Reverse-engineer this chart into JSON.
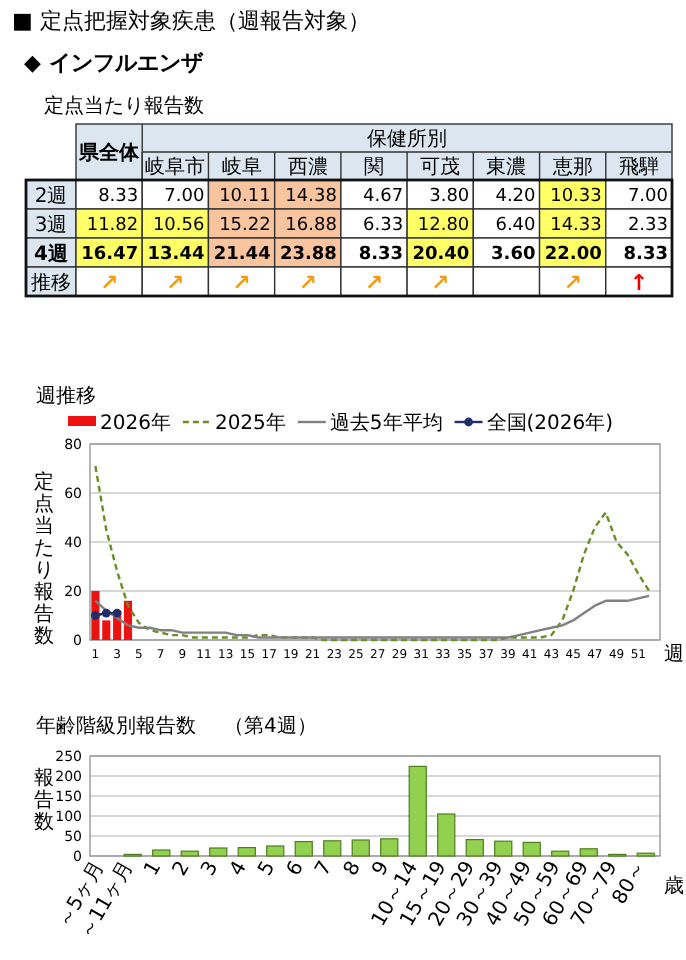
{
  "chart_data": [
    {
      "type": "other",
      "title": "■ 定点把握対象疾患（週報告対象）",
      "subtitle": "◆ インフルエンザ"
    },
    {
      "type": "heatmap",
      "title": "定点当たり報告数",
      "annotations": [
        "保健所別"
      ],
      "categories": [
        "県全体",
        "岐阜市",
        "岐阜",
        "西濃",
        "関",
        "可茂",
        "東濃",
        "恵那",
        "飛騨"
      ],
      "y_categories": [
        "2週",
        "3週",
        "4週",
        "推移"
      ],
      "cells": [
        [
          8.33,
          7.0,
          10.11,
          14.38,
          4.67,
          3.8,
          4.2,
          10.33,
          7.0
        ],
        [
          11.82,
          10.56,
          15.22,
          16.88,
          6.33,
          12.8,
          6.4,
          14.33,
          2.33
        ],
        [
          16.47,
          13.44,
          21.44,
          23.88,
          8.33,
          20.4,
          3.6,
          22.0,
          8.33
        ],
        [
          null,
          null,
          null,
          null,
          null,
          null,
          null,
          null,
          null
        ]
      ],
      "cell_labels": [
        [
          "8.33",
          "7.00",
          "10.11",
          "14.38",
          "4.67",
          "3.80",
          "4.20",
          "10.33",
          "7.00"
        ],
        [
          "11.82",
          "10.56",
          "15.22",
          "16.88",
          "6.33",
          "12.80",
          "6.40",
          "14.33",
          "2.33"
        ],
        [
          "16.47",
          "13.44",
          "21.44",
          "23.88",
          "8.33",
          "20.40",
          "3.60",
          "22.00",
          "8.33"
        ],
        [
          "↗",
          "↗",
          "↗",
          "↗",
          "↗",
          "↗",
          null,
          "↗",
          "↑"
        ]
      ],
      "colors": [
        [
          "#ffffff",
          "#ffffff",
          "#f9c49e",
          "#f9c49e",
          "#ffffff",
          "#ffffff",
          "#ffffff",
          "#ffff66",
          "#ffffff"
        ],
        [
          "#ffff66",
          "#ffff66",
          "#f9c49e",
          "#f9c49e",
          "#ffffff",
          "#ffff66",
          "#ffffff",
          "#ffff66",
          "#ffffff"
        ],
        [
          "#ffff66",
          "#ffff66",
          "#f9c49e",
          "#f9c49e",
          "#ffffff",
          "#ffff66",
          "#ffffff",
          "#ffff66",
          "#ffffff"
        ],
        [
          "#f39c12",
          "#f39c12",
          "#f39c12",
          "#f39c12",
          "#f39c12",
          "#f39c12",
          "#f39c12",
          "#f39c12",
          "#ee0000"
        ]
      ]
    },
    {
      "type": "line",
      "title": "週推移",
      "ylabel": "定点当たり報告数",
      "xlabel": "週",
      "xlim": [
        0.5,
        53
      ],
      "xticks": [
        1,
        3,
        5,
        7,
        9,
        11,
        13,
        15,
        17,
        19,
        21,
        23,
        25,
        27,
        29,
        31,
        33,
        35,
        37,
        39,
        41,
        43,
        45,
        47,
        49,
        51
      ],
      "ylim": [
        0,
        80
      ],
      "yticks": [
        0,
        20,
        40,
        60,
        80
      ],
      "grid": "y",
      "legend": "top",
      "series": [
        {
          "name": "2026年",
          "type": "bar",
          "color": "#ee1111",
          "x": [
            1,
            2,
            3,
            4
          ],
          "values": [
            20,
            8,
            12,
            16
          ]
        },
        {
          "name": "2025年",
          "type": "line",
          "line_style": "dashed",
          "color": "#6b8e23",
          "x": [
            1,
            2,
            3,
            4,
            5,
            6,
            7,
            8,
            9,
            10,
            11,
            12,
            13,
            14,
            15,
            16,
            17,
            18,
            19,
            20,
            21,
            22,
            23,
            24,
            25,
            26,
            27,
            28,
            29,
            30,
            31,
            32,
            33,
            34,
            35,
            36,
            37,
            38,
            39,
            40,
            41,
            42,
            43,
            44,
            45,
            46,
            47,
            48,
            49,
            50,
            51,
            52
          ],
          "values": [
            71,
            45,
            28,
            14,
            7,
            4,
            3,
            2,
            2,
            1,
            1,
            1,
            1,
            1,
            1,
            2,
            2,
            1,
            1,
            1,
            1,
            0,
            0,
            0,
            0,
            0,
            0,
            0,
            0,
            0,
            0,
            0,
            0,
            0,
            0,
            0,
            0,
            0,
            1,
            1,
            1,
            1,
            2,
            8,
            20,
            35,
            46,
            52,
            40,
            35,
            27,
            20
          ]
        },
        {
          "name": "過去5年平均",
          "type": "line",
          "color": "#808080",
          "x": [
            1,
            2,
            3,
            4,
            5,
            6,
            7,
            8,
            9,
            10,
            11,
            12,
            13,
            14,
            15,
            16,
            17,
            18,
            19,
            20,
            21,
            22,
            23,
            24,
            25,
            26,
            27,
            28,
            29,
            30,
            31,
            32,
            33,
            34,
            35,
            36,
            37,
            38,
            39,
            40,
            41,
            42,
            43,
            44,
            45,
            46,
            47,
            48,
            49,
            50,
            51,
            52
          ],
          "values": [
            16,
            12,
            9,
            6,
            5,
            5,
            4,
            4,
            3,
            3,
            3,
            3,
            3,
            2,
            2,
            1,
            1,
            1,
            1,
            1,
            1,
            1,
            1,
            1,
            1,
            1,
            1,
            1,
            1,
            1,
            1,
            1,
            1,
            1,
            1,
            1,
            1,
            1,
            1,
            2,
            3,
            4,
            5,
            6,
            8,
            11,
            14,
            16,
            16,
            16,
            17,
            18
          ]
        },
        {
          "name": "全国(2026年)",
          "type": "line",
          "marker": "circle",
          "color": "#1f2f6e",
          "x": [
            1,
            2,
            3
          ],
          "values": [
            10,
            11,
            11
          ]
        }
      ]
    },
    {
      "type": "bar",
      "title": "年齢階級別報告数",
      "subtitle": "（第4週）",
      "ylabel": "報告数",
      "xlabel": "歳",
      "categories": [
        "～5ヶ月",
        "～11ヶ月",
        "1",
        "2",
        "3",
        "4",
        "5",
        "6",
        "7",
        "8",
        "9",
        "10～14",
        "15～19",
        "20～29",
        "30～39",
        "40～49",
        "50～59",
        "60～69",
        "70～79",
        "80～"
      ],
      "values": [
        0,
        4,
        15,
        12,
        20,
        21,
        25,
        36,
        38,
        40,
        43,
        224,
        105,
        41,
        37,
        34,
        12,
        18,
        4,
        7
      ],
      "color": "#92d050",
      "ylim": [
        0,
        250
      ],
      "yticks": [
        0,
        50,
        100,
        150,
        200,
        250
      ],
      "grid": "y"
    }
  ]
}
